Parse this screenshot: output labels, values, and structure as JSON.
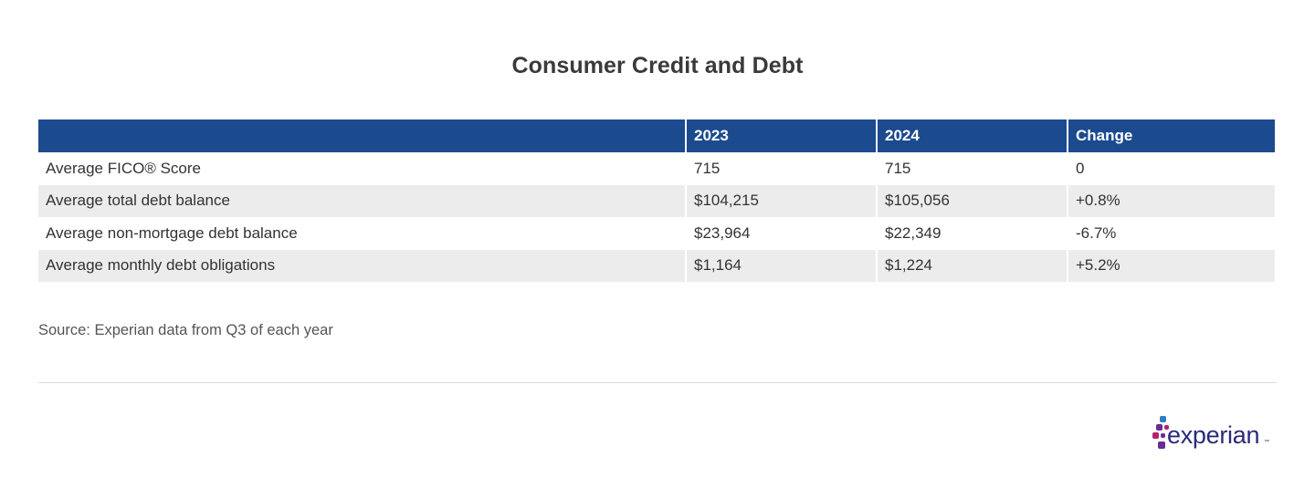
{
  "title": "Consumer Credit and Debt",
  "table": {
    "headers": [
      "",
      "2023",
      "2024",
      "Change"
    ],
    "rows": [
      {
        "label": "Average FICO® Score",
        "y2023": "715",
        "y2024": "715",
        "change": "0"
      },
      {
        "label": "Average total debt balance",
        "y2023": "$104,215",
        "y2024": "$105,056",
        "change": "+0.8%"
      },
      {
        "label": "Average non-mortgage debt balance",
        "y2023": "$23,964",
        "y2024": "$22,349",
        "change": "-6.7%"
      },
      {
        "label": "Average monthly debt obligations",
        "y2023": "$1,164",
        "y2024": "$1,224",
        "change": "+5.2%"
      }
    ]
  },
  "source": "Source: Experian data from Q3 of each year",
  "logo": {
    "text": "experian",
    "tm": "™"
  },
  "colors": {
    "header_bg": "#1c4a8f",
    "stripe_bg": "#ececec",
    "logo_blue": "#2a2a7a",
    "logo_purple": "#6b2c91",
    "logo_magenta": "#b5216f",
    "logo_lightblue": "#2e7fc1"
  }
}
